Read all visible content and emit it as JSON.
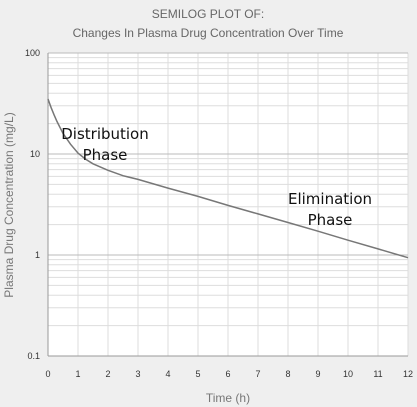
{
  "chart_data": {
    "type": "line",
    "title": "SEMILOG PLOT OF:",
    "subtitle": "Changes In Plasma Drug Concentration Over Time",
    "xlabel": "Time  (h)",
    "ylabel": "Plasma Drug Concentration  (mg/L)",
    "xlim": [
      0,
      12
    ],
    "ylim": [
      0.1,
      100
    ],
    "yscale": "log",
    "grid": true,
    "x_ticks": [
      "0",
      "1",
      "2",
      "3",
      "4",
      "5",
      "6",
      "7",
      "8",
      "9",
      "10",
      "11",
      "12"
    ],
    "y_ticks": [
      "0.1",
      "1",
      "10",
      "100"
    ],
    "series": [
      {
        "x": [
          0,
          0.1,
          0.2,
          0.3,
          0.5,
          0.75,
          1,
          1.25,
          1.5,
          2,
          2.5,
          3,
          4,
          5,
          6,
          7,
          8,
          9,
          10,
          11,
          12
        ],
        "y": [
          35,
          29,
          24.5,
          21,
          16,
          12.5,
          10.2,
          8.9,
          8.0,
          6.9,
          6.1,
          5.6,
          4.6,
          3.8,
          3.1,
          2.55,
          2.1,
          1.72,
          1.4,
          1.15,
          0.94
        ]
      }
    ],
    "annotations": [
      {
        "lines": [
          "Distribution",
          "Phase"
        ],
        "x": 1.9,
        "y": 14
      },
      {
        "lines": [
          "Elimination",
          "Phase"
        ],
        "x": 9.4,
        "y": 3.2
      }
    ],
    "colors": {
      "background": "#efefef",
      "plot_area": "#ffffff",
      "grid": "#dddddd",
      "line": "#777777"
    }
  }
}
